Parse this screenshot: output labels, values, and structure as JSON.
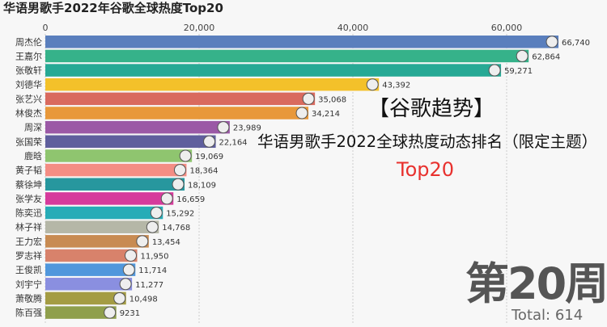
{
  "chart_data": {
    "type": "bar",
    "orientation": "horizontal",
    "title": "华语男歌手2022年谷歌全球热度Top20",
    "xlim": [
      0,
      66740
    ],
    "xticks": [
      "0",
      "20,000",
      "40,000",
      "60,000"
    ],
    "xtick_values": [
      0,
      20000,
      40000,
      60000
    ],
    "grid": true,
    "categories": [
      "周杰伦",
      "王嘉尔",
      "张敬轩",
      "刘德华",
      "张艺兴",
      "林俊杰",
      "周深",
      "张国荣",
      "鹿晗",
      "黄子韬",
      "蔡徐坤",
      "张学友",
      "陈奕迅",
      "林子祥",
      "王力宏",
      "罗志祥",
      "王俊凯",
      "刘宇宁",
      "萧敬腾",
      "陈百强"
    ],
    "values": [
      66740,
      62864,
      59271,
      43392,
      35068,
      34214,
      23989,
      22164,
      19069,
      18364,
      18109,
      16659,
      15292,
      14768,
      13454,
      11950,
      11714,
      11277,
      10498,
      9231
    ],
    "labels": [
      "66,740",
      "62,864",
      "59,271",
      "43,392",
      "35,068",
      "34,214",
      "23,989",
      "22,164",
      "19,069",
      "18,364",
      "18,109",
      "16,659",
      "15,292",
      "14,768",
      "13,454",
      "11,950",
      "11,714",
      "11,277",
      "10,498",
      "9231"
    ],
    "colors": [
      "#5a7fbd",
      "#36b28a",
      "#27a995",
      "#f3c12a",
      "#d96a5e",
      "#e8983a",
      "#9b59a6",
      "#5f5f9d",
      "#8fc56f",
      "#f48d84",
      "#27979e",
      "#d63b9c",
      "#27acb7",
      "#b5b7a7",
      "#c88b52",
      "#d8826b",
      "#5097dc",
      "#8a8fe0",
      "#a49c43",
      "#8f9f4c"
    ]
  },
  "overlay": {
    "heading": "【谷歌趋势】",
    "subheading": "华语男歌手2022全球热度动态排名（限定主题）",
    "tag": "Top20"
  },
  "period": "第20周",
  "total": "Total: 614"
}
